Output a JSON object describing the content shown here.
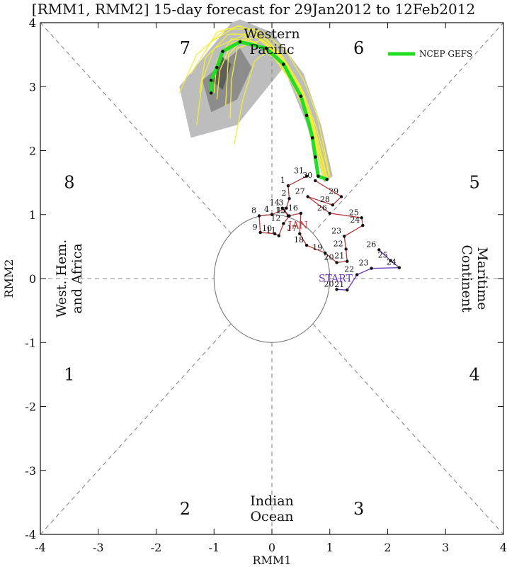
{
  "title": "[RMM1, RMM2] 15-day forecast for 29Jan2012 to 12Feb2012",
  "chart_data": {
    "type": "line",
    "xlabel": "RMM1",
    "ylabel": "RMM2",
    "xlim": [
      -4,
      4
    ],
    "ylim": [
      -4,
      4
    ],
    "xticks": [
      "-4",
      "-3",
      "-2",
      "-1",
      "0",
      "1",
      "2",
      "3",
      "4"
    ],
    "yticks": [
      "-4",
      "-3",
      "-2",
      "-1",
      "0",
      "1",
      "2",
      "3",
      "4"
    ],
    "grid": false,
    "legend": {
      "placement": "top-right",
      "entries": [
        {
          "label": "NCEP GEFS",
          "color": "#22dd22"
        }
      ]
    },
    "phases": [
      {
        "label": "1",
        "x": -3.5,
        "y": -1.5
      },
      {
        "label": "2",
        "x": -1.5,
        "y": -3.6
      },
      {
        "label": "3",
        "x": 1.5,
        "y": -3.6
      },
      {
        "label": "4",
        "x": 3.5,
        "y": -1.5
      },
      {
        "label": "5",
        "x": 3.5,
        "y": 1.5
      },
      {
        "label": "6",
        "x": 1.5,
        "y": 3.6
      },
      {
        "label": "7",
        "x": -1.5,
        "y": 3.6
      },
      {
        "label": "8",
        "x": -3.5,
        "y": 1.5
      }
    ],
    "regions": [
      {
        "lines": [
          "Western",
          "Pacific"
        ],
        "x": 0,
        "y": 3.7,
        "rotate": 0
      },
      {
        "lines": [
          "Indian",
          "Ocean"
        ],
        "x": 0,
        "y": -3.6,
        "rotate": 0
      },
      {
        "lines": [
          "West. Hem.",
          "and Africa"
        ],
        "x": -3.5,
        "y": 0,
        "rotate": -90
      },
      {
        "lines": [
          "Maritime",
          "Continent"
        ],
        "x": 3.5,
        "y": 0,
        "rotate": 90
      }
    ],
    "annotations": [
      {
        "text": "START",
        "x": 1.1,
        "y": -0.05,
        "color": "#6633bb"
      },
      {
        "text": "JAN",
        "x": 0.45,
        "y": 0.78,
        "color": "#cc3333"
      }
    ],
    "observed_series": {
      "name": "observed",
      "color": "#b03a3a",
      "points": [
        {
          "label": "31",
          "x": 0.6,
          "y": 1.6
        },
        {
          "label": "1",
          "x": 0.28,
          "y": 1.45
        },
        {
          "label": "2",
          "x": 0.3,
          "y": 1.25
        },
        {
          "label": "3",
          "x": 0.25,
          "y": 1.1
        },
        {
          "label": "4",
          "x": 0.0,
          "y": 1.0
        },
        {
          "label": "8",
          "x": -0.22,
          "y": 0.98
        },
        {
          "label": "9",
          "x": -0.2,
          "y": 0.72
        },
        {
          "label": "10",
          "x": 0.05,
          "y": 0.7
        },
        {
          "label": "11",
          "x": 0.12,
          "y": 0.67
        },
        {
          "label": "12",
          "x": 0.2,
          "y": 0.86
        },
        {
          "label": "13",
          "x": 0.3,
          "y": 0.98
        },
        {
          "label": "14",
          "x": 0.18,
          "y": 1.1
        },
        {
          "label": "15",
          "x": 0.28,
          "y": 0.98
        },
        {
          "label": "16",
          "x": 0.5,
          "y": 1.02
        },
        {
          "label": "17",
          "x": 0.48,
          "y": 0.7
        },
        {
          "label": "18",
          "x": 0.6,
          "y": 0.52
        },
        {
          "label": "19",
          "x": 0.92,
          "y": 0.4
        },
        {
          "label": "20",
          "x": 1.12,
          "y": 0.25
        },
        {
          "label": "21",
          "x": 1.3,
          "y": 0.27
        },
        {
          "label": "22",
          "x": 1.28,
          "y": 0.46
        },
        {
          "label": "23",
          "x": 1.25,
          "y": 0.66
        },
        {
          "label": "24",
          "x": 1.57,
          "y": 0.83
        },
        {
          "label": "25",
          "x": 1.55,
          "y": 0.95
        },
        {
          "label": "26",
          "x": 1.0,
          "y": 1.02
        },
        {
          "label": "27",
          "x": 0.62,
          "y": 1.28
        },
        {
          "label": "28",
          "x": 1.05,
          "y": 1.15
        },
        {
          "label": "29",
          "x": 1.2,
          "y": 1.28
        },
        {
          "label": "30",
          "x": 0.75,
          "y": 1.53
        }
      ]
    },
    "forecast_start_series": {
      "name": "forecast start",
      "color": "#6633bb",
      "points": [
        {
          "label": "20",
          "x": 1.12,
          "y": -0.17
        },
        {
          "label": "21",
          "x": 1.3,
          "y": -0.18
        },
        {
          "label": "22",
          "x": 1.47,
          "y": 0.06
        },
        {
          "label": "23",
          "x": 1.72,
          "y": 0.16
        },
        {
          "label": "24",
          "x": 2.2,
          "y": 0.17
        },
        {
          "label": "25",
          "x": 2.05,
          "y": 0.28
        },
        {
          "label": "26",
          "x": 1.85,
          "y": 0.45
        }
      ]
    },
    "ensemble_mean": {
      "name": "NCEP GEFS",
      "color": "#22dd22",
      "points": [
        {
          "x": 0.95,
          "y": 1.55
        },
        {
          "x": 0.8,
          "y": 1.6
        },
        {
          "x": 0.75,
          "y": 1.9
        },
        {
          "x": 0.7,
          "y": 2.2
        },
        {
          "x": 0.6,
          "y": 2.55
        },
        {
          "x": 0.5,
          "y": 2.85
        },
        {
          "x": 0.2,
          "y": 3.35
        },
        {
          "x": -0.1,
          "y": 3.6
        },
        {
          "x": -0.55,
          "y": 3.7
        },
        {
          "x": -0.85,
          "y": 3.55
        },
        {
          "x": -0.95,
          "y": 3.3
        },
        {
          "x": -1.05,
          "y": 3.1
        },
        {
          "x": -1.05,
          "y": 2.9
        }
      ]
    },
    "ensemble_members": [
      [
        [
          0.9,
          1.55
        ],
        [
          0.8,
          1.95
        ],
        [
          0.65,
          2.45
        ],
        [
          0.35,
          3.05
        ],
        [
          0.0,
          3.5
        ],
        [
          -0.5,
          3.8
        ],
        [
          -1.0,
          3.6
        ],
        [
          -1.2,
          3.1
        ],
        [
          -1.3,
          2.4
        ]
      ],
      [
        [
          0.95,
          1.55
        ],
        [
          0.85,
          1.9
        ],
        [
          0.7,
          2.4
        ],
        [
          0.45,
          2.95
        ],
        [
          0.1,
          3.4
        ],
        [
          -0.3,
          3.7
        ],
        [
          -0.7,
          3.75
        ],
        [
          -0.95,
          3.4
        ],
        [
          -1.0,
          2.9
        ]
      ],
      [
        [
          0.9,
          1.6
        ],
        [
          0.78,
          2.0
        ],
        [
          0.62,
          2.5
        ],
        [
          0.4,
          3.1
        ],
        [
          0.1,
          3.55
        ],
        [
          -0.3,
          3.9
        ],
        [
          -0.8,
          3.9
        ],
        [
          -1.3,
          3.5
        ],
        [
          -1.6,
          2.9
        ]
      ],
      [
        [
          1.0,
          1.55
        ],
        [
          0.9,
          1.95
        ],
        [
          0.75,
          2.4
        ],
        [
          0.55,
          2.9
        ],
        [
          0.3,
          3.3
        ],
        [
          0.0,
          3.6
        ],
        [
          -0.3,
          3.4
        ],
        [
          -0.5,
          2.8
        ],
        [
          -0.65,
          2.1
        ]
      ],
      [
        [
          0.95,
          1.6
        ],
        [
          0.82,
          2.0
        ],
        [
          0.7,
          2.45
        ],
        [
          0.5,
          3.0
        ],
        [
          0.2,
          3.45
        ],
        [
          -0.1,
          3.75
        ],
        [
          -0.55,
          3.95
        ],
        [
          -0.95,
          3.85
        ],
        [
          -1.15,
          3.55
        ]
      ],
      [
        [
          0.9,
          1.55
        ],
        [
          0.8,
          1.92
        ],
        [
          0.66,
          2.35
        ],
        [
          0.48,
          2.85
        ],
        [
          0.25,
          3.35
        ],
        [
          -0.05,
          3.65
        ],
        [
          -0.4,
          3.85
        ],
        [
          -0.75,
          3.5
        ],
        [
          -0.8,
          2.7
        ]
      ],
      [
        [
          1.0,
          1.6
        ],
        [
          0.9,
          2.05
        ],
        [
          0.78,
          2.55
        ],
        [
          0.55,
          3.1
        ],
        [
          0.25,
          3.55
        ],
        [
          -0.15,
          3.85
        ],
        [
          -0.6,
          3.95
        ],
        [
          -1.05,
          3.7
        ],
        [
          -1.4,
          3.2
        ]
      ],
      [
        [
          0.92,
          1.58
        ],
        [
          0.8,
          1.98
        ],
        [
          0.68,
          2.48
        ],
        [
          0.45,
          3.02
        ],
        [
          0.15,
          3.48
        ],
        [
          -0.25,
          3.78
        ],
        [
          -0.7,
          3.68
        ],
        [
          -0.9,
          3.25
        ],
        [
          -0.95,
          2.8
        ]
      ],
      [
        [
          0.96,
          1.56
        ],
        [
          0.86,
          1.94
        ],
        [
          0.72,
          2.42
        ],
        [
          0.5,
          2.95
        ],
        [
          0.2,
          3.42
        ],
        [
          -0.2,
          3.72
        ],
        [
          -0.6,
          3.6
        ],
        [
          -0.7,
          3.1
        ],
        [
          -0.72,
          2.5
        ]
      ],
      [
        [
          0.9,
          1.6
        ],
        [
          0.8,
          2.0
        ],
        [
          0.66,
          2.5
        ],
        [
          0.42,
          3.05
        ],
        [
          0.12,
          3.52
        ],
        [
          -0.28,
          3.82
        ],
        [
          -0.75,
          3.82
        ],
        [
          -1.15,
          3.45
        ],
        [
          -1.25,
          2.9
        ]
      ]
    ],
    "spread_outer": [
      [
        -0.7,
        4.0
      ],
      [
        -1.6,
        3.0
      ],
      [
        -1.4,
        2.2
      ],
      [
        -0.6,
        2.4
      ],
      [
        0.2,
        3.3
      ],
      [
        0.7,
        2.2
      ],
      [
        0.9,
        1.5
      ],
      [
        1.05,
        1.6
      ],
      [
        0.85,
        2.4
      ],
      [
        0.55,
        3.2
      ],
      [
        0.0,
        3.85
      ],
      [
        -0.55,
        4.05
      ]
    ],
    "spread_inner": [
      [
        -0.55,
        3.6
      ],
      [
        -1.2,
        3.1
      ],
      [
        -1.05,
        2.6
      ],
      [
        -0.6,
        2.8
      ],
      [
        -0.35,
        3.3
      ]
    ],
    "spread_inner2": [
      [
        -0.9,
        3.5
      ],
      [
        -1.05,
        3.1
      ],
      [
        -0.85,
        2.95
      ],
      [
        -0.7,
        3.35
      ]
    ]
  }
}
